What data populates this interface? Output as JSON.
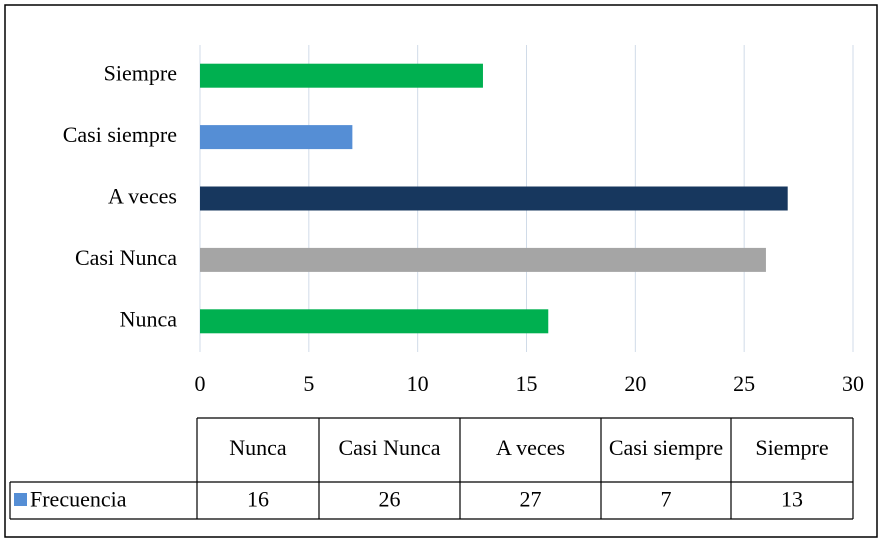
{
  "chart_data": {
    "type": "barh",
    "categories": [
      "Nunca",
      "Casi Nunca",
      "A veces",
      "Casi siempre",
      "Siempre"
    ],
    "series": [
      {
        "name": "Frecuencia",
        "color": "#558ed5",
        "values": [
          16,
          26,
          27,
          7,
          13
        ]
      }
    ],
    "colors": [
      "#00b050",
      "#a5a5a5",
      "#17375e",
      "#558ed5",
      "#00b050"
    ],
    "xlim": [
      0,
      30
    ],
    "xticks": [
      0,
      5,
      10,
      15,
      20,
      25,
      30
    ],
    "grid": true,
    "data_table": true
  }
}
